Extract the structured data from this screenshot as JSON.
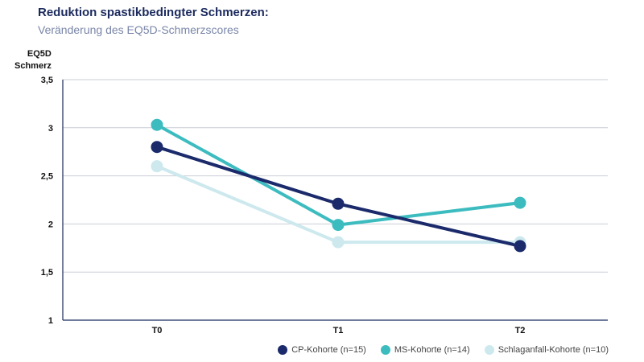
{
  "title": "Reduktion spastikbedingter Schmerzen:",
  "subtitle": "Veränderung des EQ5D-Schmerzscores",
  "chart_data": {
    "type": "line",
    "title": "Reduktion spastikbedingter Schmerzen:",
    "subtitle": "Veränderung des EQ5D-Schmerzscores",
    "ylabel_line1": "EQ5D",
    "ylabel_line2": "Schmerz",
    "xlabel": "",
    "categories": [
      "T0",
      "T1",
      "T2"
    ],
    "ylim": [
      1,
      3.5
    ],
    "yticks": [
      1,
      1.5,
      2,
      2.5,
      3,
      3.5
    ],
    "ytick_labels": [
      "1",
      "1,5",
      "2",
      "2,5",
      "3",
      "3,5"
    ],
    "grid": true,
    "legend_position": "bottom-right",
    "series": [
      {
        "name": "CP-Kohorte (n=15)",
        "color": "#1b2a6b",
        "values": [
          2.8,
          2.21,
          1.77
        ]
      },
      {
        "name": "MS-Kohorte (n=14)",
        "color": "#3dbcc0",
        "values": [
          3.03,
          1.99,
          2.22
        ]
      },
      {
        "name": "Schlaganfall-Kohorte (n=10)",
        "color": "#cde9ee",
        "values": [
          2.6,
          1.81,
          1.81
        ]
      }
    ]
  }
}
